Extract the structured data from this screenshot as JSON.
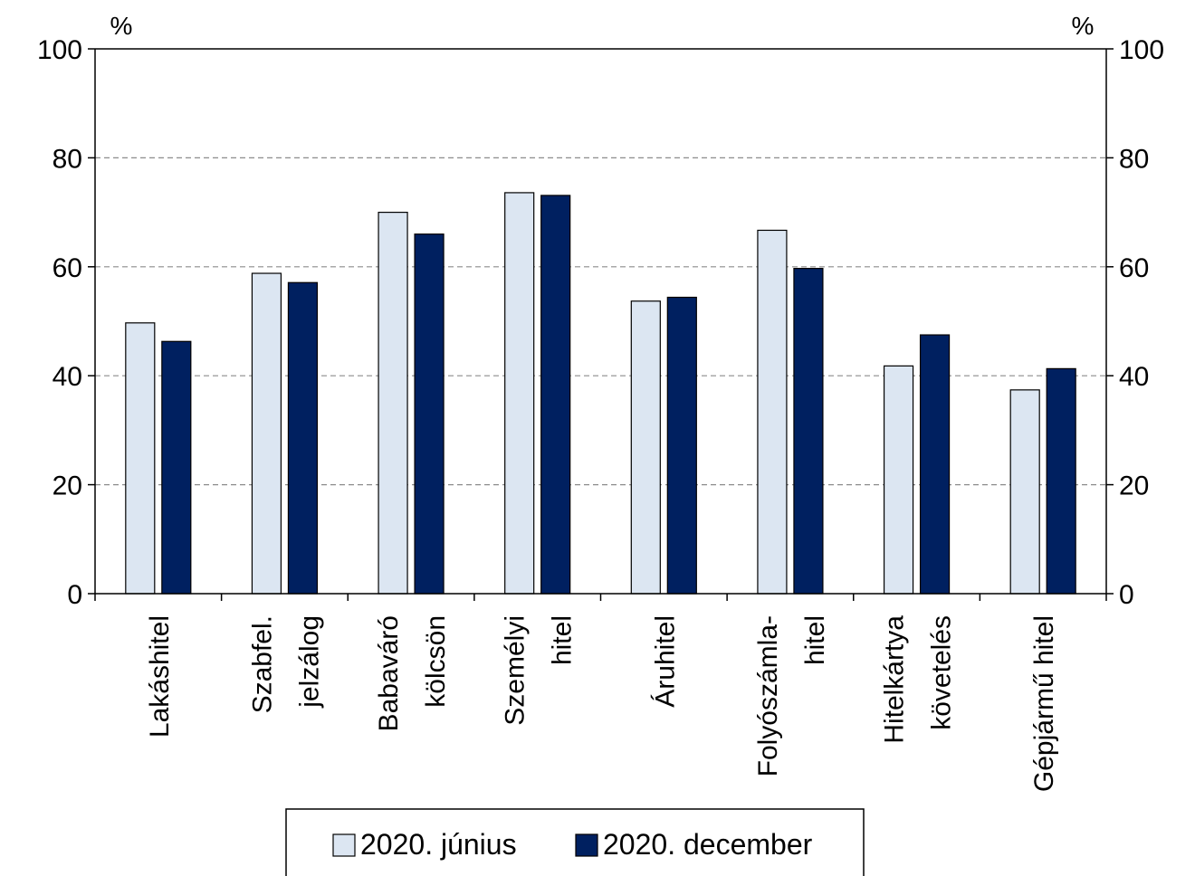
{
  "chart_data": {
    "type": "bar",
    "left_axis_unit": "%",
    "right_axis_unit": "%",
    "ylim": [
      0,
      100
    ],
    "yticks": [
      0,
      20,
      40,
      60,
      80,
      100
    ],
    "grid": "horizontal-dashed",
    "categories": [
      [
        "Lakáshitel"
      ],
      [
        "Szabfel.",
        "jelzálog"
      ],
      [
        "Babaváró",
        "kölcsön"
      ],
      [
        "Személyi",
        "hitel"
      ],
      [
        "Áruhitel"
      ],
      [
        "Folyószámla-",
        "hitel"
      ],
      [
        "Hitelkártya",
        "követelés"
      ],
      [
        "Gépjármű hitel"
      ]
    ],
    "series": [
      {
        "name": "2020. június",
        "color": "#dce6f2",
        "values": [
          49.7,
          58.8,
          70.0,
          73.6,
          53.7,
          66.7,
          41.8,
          37.4
        ]
      },
      {
        "name": "2020. december",
        "color": "#002060",
        "values": [
          46.3,
          57.1,
          66.0,
          73.1,
          54.4,
          59.7,
          47.5,
          41.3
        ]
      }
    ],
    "legend_position": "bottom-center"
  }
}
